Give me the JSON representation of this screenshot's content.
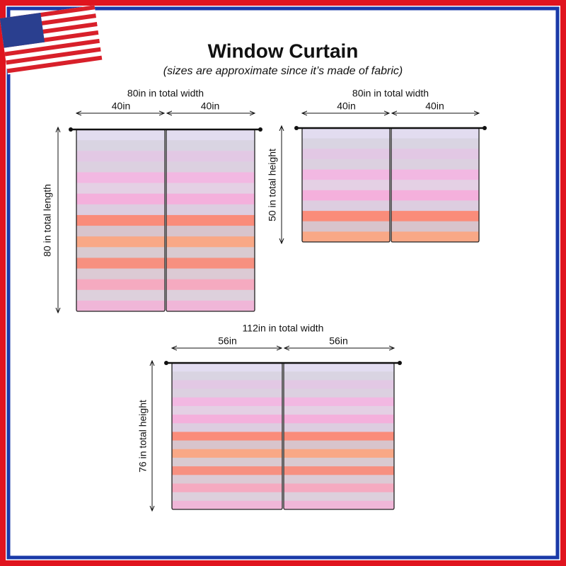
{
  "header": {
    "title": "Window Curtain",
    "subtitle": "(sizes are approximate since it’s made of fabric)"
  },
  "curtains": [
    {
      "total_width": "80in in total width",
      "panel_widths": [
        "40in",
        "40in"
      ],
      "height": "80 in total length"
    },
    {
      "total_width": "80in in total width",
      "panel_widths": [
        "40in",
        "40in"
      ],
      "height": "50 in total height"
    },
    {
      "total_width": "112in in total width",
      "panel_widths": [
        "56in",
        "56in"
      ],
      "height": "76 in total height"
    }
  ]
}
